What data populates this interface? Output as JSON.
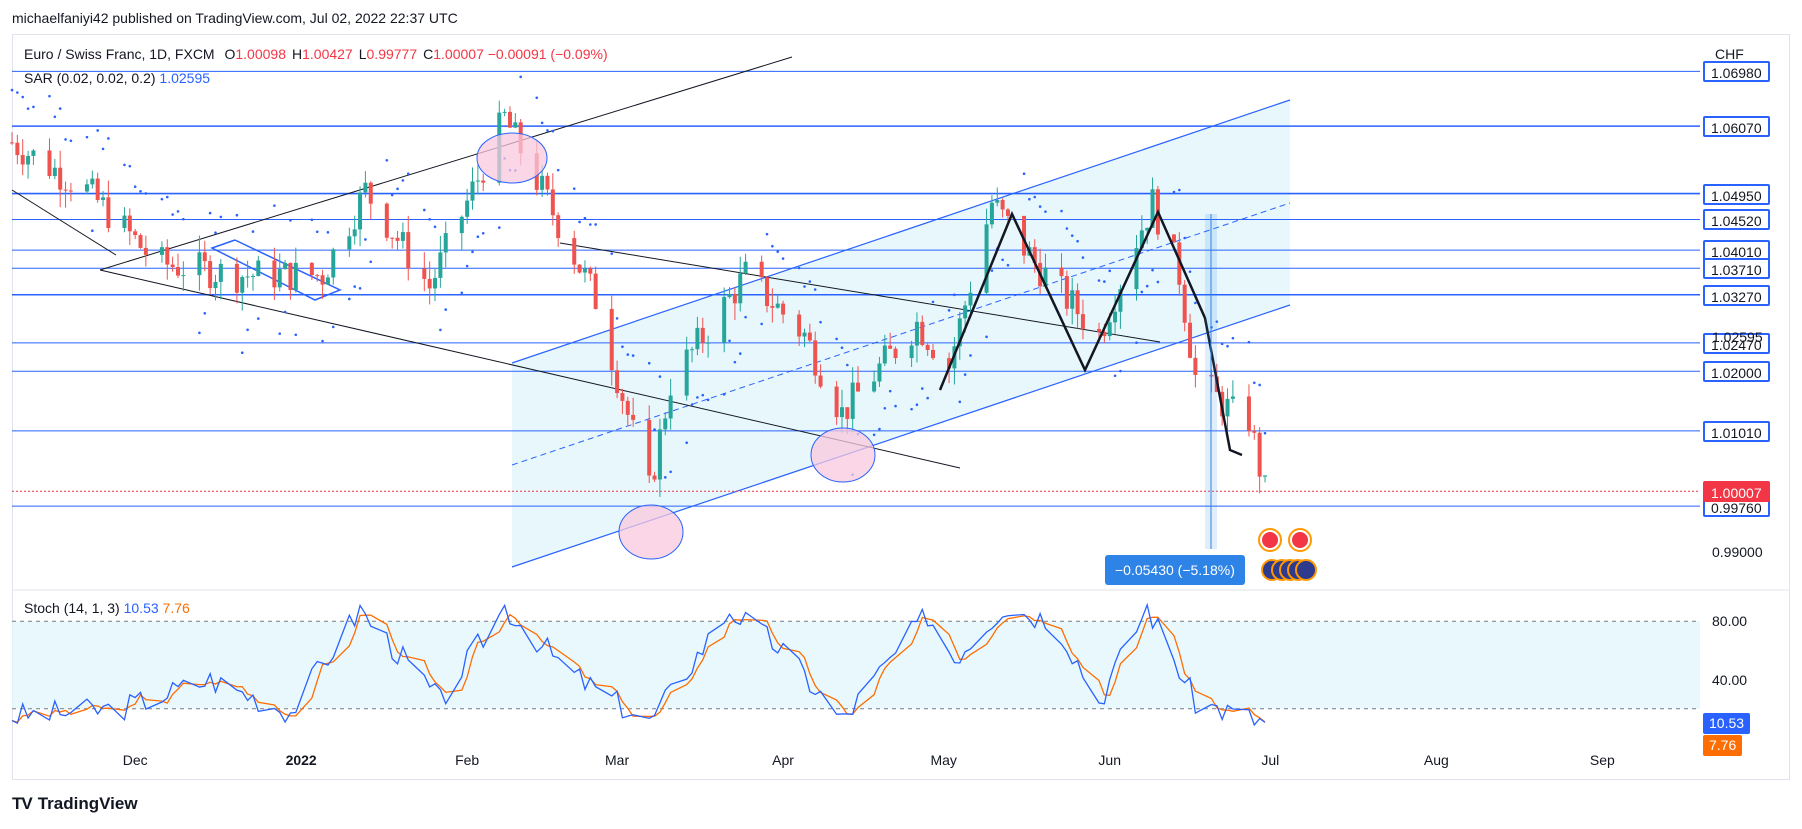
{
  "header": {
    "publisher": "michaelfaniyi42 published on TradingView.com, Jul 02, 2022 22:37 UTC",
    "symbol": "Euro / Swiss Franc, 1D, FXCM",
    "ohlc": [
      {
        "k": "O",
        "v": "1.00098"
      },
      {
        "k": "H",
        "v": "1.00427"
      },
      {
        "k": "L",
        "v": "0.99777"
      },
      {
        "k": "C",
        "v": "1.00007"
      }
    ],
    "change": "−0.00091 (−0.09%)",
    "sar_label": "SAR (0.02, 0.02, 0.2)",
    "sar_value": "1.02595",
    "stoch_label": "Stoch (14, 1, 3)",
    "stoch_k": "10.53",
    "stoch_d": "7.76",
    "axis_unit": "CHF"
  },
  "price_levels": [
    "1.06980",
    "1.06070",
    "1.04950",
    "1.04520",
    "1.04010",
    "1.03710",
    "1.03270",
    "1.02470",
    "1.02000",
    "1.01010",
    "0.99760"
  ],
  "current_price": "1.00007",
  "sar_axis_value": "1.02595",
  "plain_axis_value": "0.99000",
  "stoch_axis": [
    "80.00",
    "40.00"
  ],
  "stoch_tags": [
    "10.53",
    "7.76"
  ],
  "measure": "−0.05430 (−5.18%)",
  "time_axis": [
    {
      "label": "Dec",
      "bold": false
    },
    {
      "label": "2022",
      "bold": true
    },
    {
      "label": "Feb",
      "bold": false
    },
    {
      "label": "Mar",
      "bold": false
    },
    {
      "label": "Apr",
      "bold": false
    },
    {
      "label": "May",
      "bold": false
    },
    {
      "label": "Jun",
      "bold": false
    },
    {
      "label": "Jul",
      "bold": false
    },
    {
      "label": "Aug",
      "bold": false
    },
    {
      "label": "Sep",
      "bold": false
    }
  ],
  "brand": "TradingView",
  "colors": {
    "up": "#26a69a",
    "down": "#ef5350",
    "line": "#2962ff",
    "channel_fill": "#e3f6fb",
    "stoch_k": "#2962ff",
    "stoch_d": "#ff6d00"
  },
  "chart_data": {
    "type": "candlestick",
    "title": "Euro / Swiss Franc, 1D, FXCM",
    "ylim": [
      0.985,
      1.075
    ],
    "horizontal_levels": [
      1.0698,
      1.0607,
      1.0495,
      1.0452,
      1.0401,
      1.0371,
      1.0327,
      1.0247,
      1.02,
      1.0101,
      0.9976
    ],
    "anchors": [
      {
        "date": "2021-11-08",
        "close": 1.058
      },
      {
        "date": "2021-11-22",
        "close": 1.05
      },
      {
        "date": "2021-12-05",
        "close": 1.038
      },
      {
        "date": "2021-12-20",
        "close": 1.036
      },
      {
        "date": "2022-01-05",
        "close": 1.036
      },
      {
        "date": "2022-01-13",
        "close": 1.05
      },
      {
        "date": "2022-01-25",
        "close": 1.034
      },
      {
        "date": "2022-02-08",
        "close": 1.062
      },
      {
        "date": "2022-02-15",
        "close": 1.05
      },
      {
        "date": "2022-02-25",
        "close": 1.032
      },
      {
        "date": "2022-03-07",
        "close": 1.0
      },
      {
        "date": "2022-03-11",
        "close": 1.018
      },
      {
        "date": "2022-03-25",
        "close": 1.036
      },
      {
        "date": "2022-04-05",
        "close": 1.026
      },
      {
        "date": "2022-04-12",
        "close": 1.013
      },
      {
        "date": "2022-04-26",
        "close": 1.028
      },
      {
        "date": "2022-05-02",
        "close": 1.021
      },
      {
        "date": "2022-05-10",
        "close": 1.048
      },
      {
        "date": "2022-05-18",
        "close": 1.038
      },
      {
        "date": "2022-05-30",
        "close": 1.026
      },
      {
        "date": "2022-06-06",
        "close": 1.042
      },
      {
        "date": "2022-06-09",
        "close": 1.048
      },
      {
        "date": "2022-06-14",
        "close": 1.036
      },
      {
        "date": "2022-06-17",
        "close": 1.019
      },
      {
        "date": "2022-06-24",
        "close": 1.013
      },
      {
        "date": "2022-06-27",
        "close": 1.012
      },
      {
        "date": "2022-06-30",
        "close": 1.0
      }
    ],
    "stochastic": {
      "k": 10.53,
      "d": 7.76,
      "upper": 80,
      "lower": 20,
      "anchors": [
        {
          "date": "2021-11-08",
          "k": 15
        },
        {
          "date": "2021-11-28",
          "k": 20
        },
        {
          "date": "2021-12-15",
          "k": 40
        },
        {
          "date": "2021-12-30",
          "k": 18
        },
        {
          "date": "2022-01-12",
          "k": 88
        },
        {
          "date": "2022-01-27",
          "k": 25
        },
        {
          "date": "2022-02-08",
          "k": 90
        },
        {
          "date": "2022-02-20",
          "k": 45
        },
        {
          "date": "2022-03-07",
          "k": 10
        },
        {
          "date": "2022-03-22",
          "k": 88
        },
        {
          "date": "2022-04-01",
          "k": 60
        },
        {
          "date": "2022-04-12",
          "k": 12
        },
        {
          "date": "2022-04-28",
          "k": 85
        },
        {
          "date": "2022-05-03",
          "k": 55
        },
        {
          "date": "2022-05-12",
          "k": 90
        },
        {
          "date": "2022-05-22",
          "k": 80
        },
        {
          "date": "2022-05-30",
          "k": 25
        },
        {
          "date": "2022-06-08",
          "k": 90
        },
        {
          "date": "2022-06-17",
          "k": 25
        },
        {
          "date": "2022-06-30",
          "k": 10.53
        }
      ]
    }
  }
}
